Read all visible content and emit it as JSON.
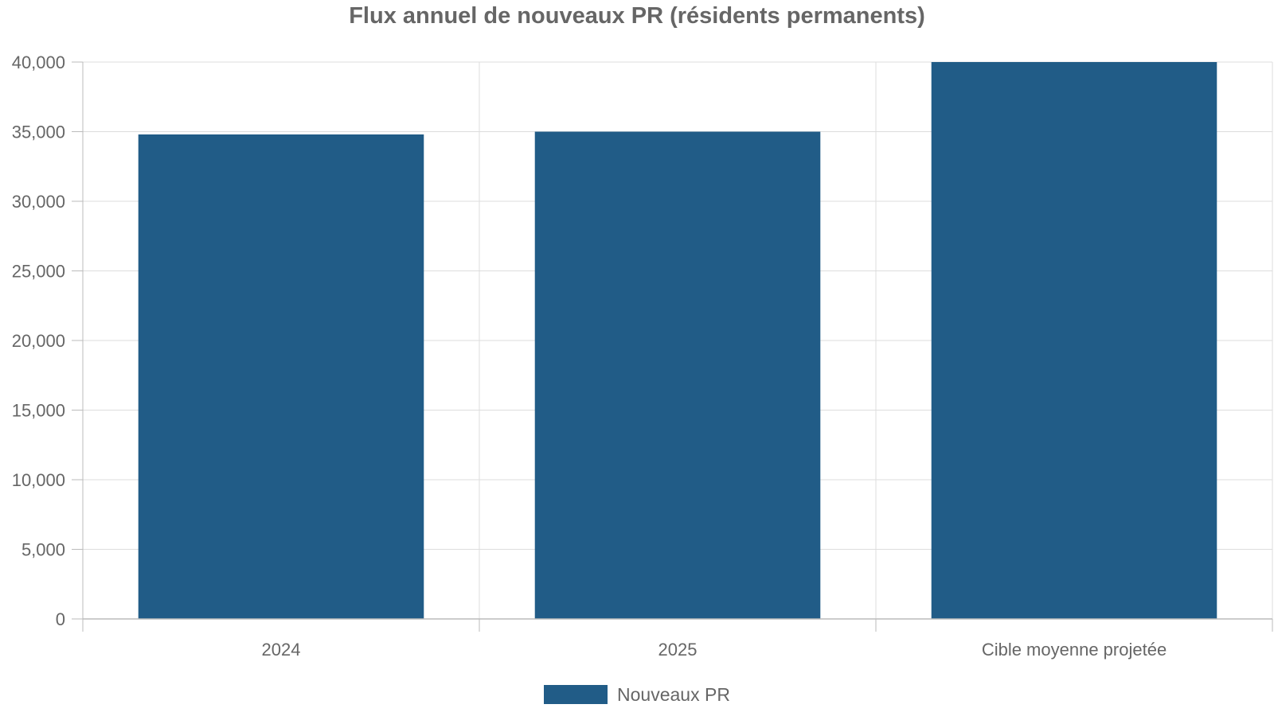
{
  "chart_data": {
    "type": "bar",
    "title": "Flux annuel de nouveaux PR (résidents permanents)",
    "categories": [
      "2024",
      "2025",
      "Cible moyenne projetée"
    ],
    "series": [
      {
        "name": "Nouveaux PR",
        "values": [
          34800,
          35000,
          40000
        ],
        "color": "#215c87"
      }
    ],
    "ylim": [
      0,
      40000
    ],
    "yticks": [
      0,
      5000,
      10000,
      15000,
      20000,
      25000,
      30000,
      35000,
      40000
    ],
    "ytick_labels": [
      "0",
      "5,000",
      "10,000",
      "15,000",
      "20,000",
      "25,000",
      "30,000",
      "35,000",
      "40,000"
    ],
    "grid": true,
    "legend_position": "bottom-center"
  },
  "colors": {
    "bar": "#215c87",
    "grid": "#dddddd",
    "axis": "#bbbbbb",
    "text": "#666666"
  }
}
